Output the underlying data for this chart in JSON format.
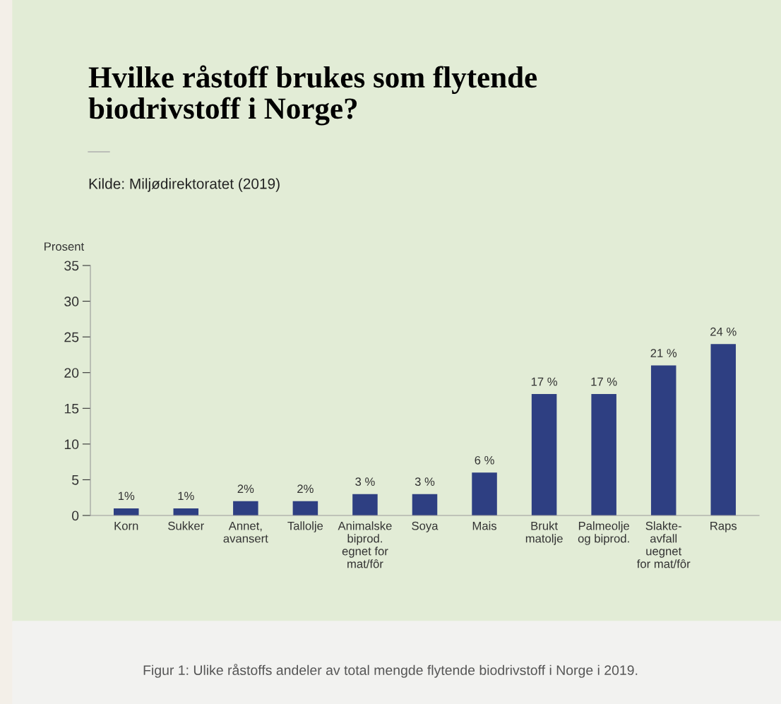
{
  "chart_data": {
    "type": "bar",
    "title": "Hvilke råstoff brukes som flytende\nbiodrivstoff i Norge?",
    "subtitle": "Kilde: Miljødirektoratet (2019)",
    "ylabel": "Prosent",
    "categories": [
      "Korn",
      "Sukker",
      "Annet,\navansert",
      "Tallolje",
      "Animalske\nbiprod.\negnet for\nmat/fôr",
      "Soya",
      "Mais",
      "Brukt\nmatolje",
      "Palmeolje\nog biprod.",
      "Slakte-\navfall\nuegnet\nfor mat/fôr",
      "Raps"
    ],
    "values": [
      1,
      1,
      2,
      2,
      3,
      3,
      6,
      17,
      17,
      21,
      24
    ],
    "value_labels": [
      "1%",
      "1%",
      "2%",
      "2%",
      "3 %",
      "3 %",
      "6 %",
      "17 %",
      "17 %",
      "21 %",
      "24 %"
    ],
    "color": "#2e3f82",
    "ylim": [
      0,
      35
    ],
    "yticks": [
      0,
      5,
      10,
      15,
      20,
      25,
      30,
      35
    ],
    "grid": false,
    "legend": false,
    "annotations": [
      "Figur 1: Ulike råstoffs andeler av total mengde flytende biodrivstoff i Norge i 2019."
    ]
  }
}
